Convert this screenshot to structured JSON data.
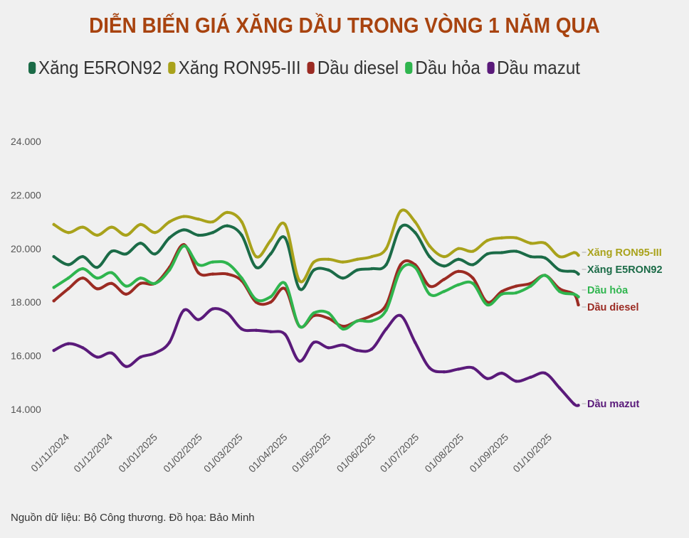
{
  "title": "DIỄN BIẾN GIÁ XĂNG DẦU TRONG VÒNG 1 NĂM QUA",
  "source": "Nguồn dữ liệu: Bộ Công thương. Đồ họa: Bảo Minh",
  "chart_data": {
    "type": "line",
    "title": "DIỄN BIẾN GIÁ XĂNG DẦU TRONG VÒNG 1 NĂM QUA",
    "xlabel": "",
    "ylabel": "",
    "ylim": [
      14000,
      24000
    ],
    "yticks": [
      14000,
      16000,
      18000,
      20000,
      22000,
      24000
    ],
    "ytick_labels": [
      "14.000",
      "16.000",
      "18.000",
      "20.000",
      "22.000",
      "24.000"
    ],
    "xtick_labels": [
      "01/11/2024",
      "01/12/2024",
      "01/01/2025",
      "01/02/2025",
      "01/03/2025",
      "01/04/2025",
      "01/05/2025",
      "01/06/2025",
      "01/07/2025",
      "01/08/2025",
      "01/09/2025",
      "01/10/2025"
    ],
    "xtick_dates": [
      "2024-11-01",
      "2024-12-01",
      "2025-01-01",
      "2025-02-01",
      "2025-03-01",
      "2025-04-01",
      "2025-05-01",
      "2025-06-01",
      "2025-07-01",
      "2025-08-01",
      "2025-09-01",
      "2025-10-01"
    ],
    "grid": false,
    "legend": "top",
    "x": [
      "2024-10-21",
      "2024-10-31",
      "2024-11-10",
      "2024-11-20",
      "2024-11-30",
      "2024-12-10",
      "2024-12-20",
      "2024-12-30",
      "2025-01-09",
      "2025-01-19",
      "2025-01-29",
      "2025-02-08",
      "2025-02-18",
      "2025-02-28",
      "2025-03-10",
      "2025-03-20",
      "2025-03-30",
      "2025-04-09",
      "2025-04-19",
      "2025-04-29",
      "2025-05-09",
      "2025-05-19",
      "2025-05-29",
      "2025-06-08",
      "2025-06-18",
      "2025-06-28",
      "2025-07-08",
      "2025-07-18",
      "2025-07-28",
      "2025-08-07",
      "2025-08-17",
      "2025-08-27",
      "2025-09-06",
      "2025-09-16",
      "2025-09-26",
      "2025-10-06",
      "2025-10-16",
      "2025-10-19"
    ],
    "series": [
      {
        "name": "Xăng E5RON92",
        "label": "Xăng E5RON92",
        "color": "#1b6b47",
        "values": [
          19700,
          19400,
          19700,
          19300,
          19900,
          19800,
          20200,
          19800,
          20400,
          20700,
          20500,
          20600,
          20850,
          20500,
          19300,
          19800,
          20400,
          18500,
          19200,
          19200,
          18900,
          19200,
          19250,
          19400,
          20800,
          20600,
          19700,
          19350,
          19600,
          19400,
          19800,
          19850,
          19900,
          19700,
          19650,
          19200,
          19150,
          19050
        ]
      },
      {
        "name": "Xăng RON95-III",
        "label": "Xăng RON95-III",
        "color": "#a9a21b",
        "values": [
          20900,
          20600,
          20800,
          20500,
          20800,
          20500,
          20900,
          20600,
          21000,
          21200,
          21100,
          21000,
          21350,
          21000,
          19700,
          20300,
          20900,
          18800,
          19500,
          19600,
          19500,
          19600,
          19700,
          20000,
          21400,
          21000,
          20100,
          19700,
          20000,
          19900,
          20300,
          20400,
          20400,
          20200,
          20200,
          19700,
          19850,
          19750
        ]
      },
      {
        "name": "Dầu diesel",
        "label": "Dầu diesel",
        "color": "#9b2b23",
        "values": [
          18050,
          18500,
          18900,
          18500,
          18700,
          18300,
          18700,
          18700,
          19300,
          20150,
          19100,
          19050,
          19050,
          18800,
          18000,
          18000,
          18500,
          17100,
          17500,
          17400,
          17100,
          17300,
          17500,
          17900,
          19400,
          19400,
          18600,
          18850,
          19150,
          18900,
          18000,
          18400,
          18600,
          18700,
          19000,
          18500,
          18300,
          17900
        ]
      },
      {
        "name": "Dầu hỏa",
        "label": "Dầu hỏa",
        "color": "#2fb54e",
        "values": [
          18550,
          18900,
          19250,
          18900,
          19100,
          18600,
          18900,
          18700,
          19200,
          20100,
          19400,
          19500,
          19450,
          18900,
          18100,
          18200,
          18700,
          17100,
          17600,
          17600,
          17000,
          17300,
          17300,
          17700,
          19200,
          19300,
          18300,
          18400,
          18650,
          18700,
          17900,
          18300,
          18350,
          18600,
          19000,
          18400,
          18300,
          18200
        ]
      },
      {
        "name": "Dầu mazut",
        "label": "Dầu mazut",
        "color": "#5a1a7a",
        "values": [
          16200,
          16450,
          16300,
          15950,
          16100,
          15600,
          15950,
          16100,
          16500,
          17700,
          17350,
          17750,
          17600,
          17000,
          16950,
          16900,
          16800,
          15800,
          16500,
          16300,
          16400,
          16200,
          16250,
          17000,
          17500,
          16500,
          15550,
          15400,
          15500,
          15550,
          15150,
          15350,
          15050,
          15200,
          15350,
          14800,
          14200,
          14150
        ]
      }
    ]
  }
}
